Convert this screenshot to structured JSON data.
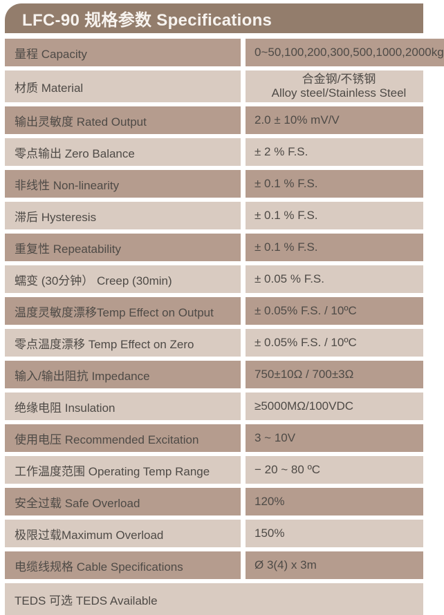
{
  "header": {
    "title": "LFC-90 规格参数 Specifications"
  },
  "colors": {
    "header_bg": "#937D6C",
    "header_text": "#F7F3EF",
    "row_dark": "#B59C8E",
    "row_light": "#D9CBC1",
    "text": "#4E4A46",
    "page_bg": "#FFFFFF"
  },
  "table": {
    "rows": [
      {
        "label": "量程 Capacity",
        "value": "0~50,100,200,300,500,1000,2000kg"
      },
      {
        "label": "材质 Material",
        "value_cn": "合金钢/不锈钢",
        "value_en": "Alloy steel/Stainless Steel"
      },
      {
        "label": "输出灵敏度 Rated Output",
        "value": "2.0 ± 10% mV/V"
      },
      {
        "label": "零点输出  Zero Balance",
        "value": "± 2 % F.S."
      },
      {
        "label": "非线性 Non-linearity",
        "value": "± 0.1 % F.S."
      },
      {
        "label": "滞后 Hysteresis",
        "value": "± 0.1 % F.S."
      },
      {
        "label": "重复性 Repeatability",
        "value": "± 0.1 % F.S."
      },
      {
        "label": "蠕变 (30分钟） Creep (30min)",
        "value": "± 0.05 % F.S."
      },
      {
        "label": "温度灵敏度漂移Temp Effect on Output",
        "value": "± 0.05% F.S. / 10ºC"
      },
      {
        "label": "零点温度漂移 Temp Effect on Zero",
        "value": "± 0.05% F.S. / 10ºC"
      },
      {
        "label": "输入/输出阻抗 Impedance",
        "value": "750±10Ω / 700±3Ω"
      },
      {
        "label": "绝缘电阻  Insulation",
        "value": "≥5000MΩ/100VDC"
      },
      {
        "label": "使用电压 Recommended Excitation",
        "value": "3 ~ 10V"
      },
      {
        "label": "工作温度范围 Operating Temp  Range",
        "value": "− 20 ~ 80 ºC"
      },
      {
        "label": "安全过载 Safe Overload",
        "value": "120%"
      },
      {
        "label": "极限过载Maximum Overload",
        "value": "150%"
      },
      {
        "label": "电缆线规格 Cable Specifications",
        "value": "Ø 3(4) x 3m"
      },
      {
        "label": "TEDS 可选 TEDS Available"
      }
    ]
  }
}
